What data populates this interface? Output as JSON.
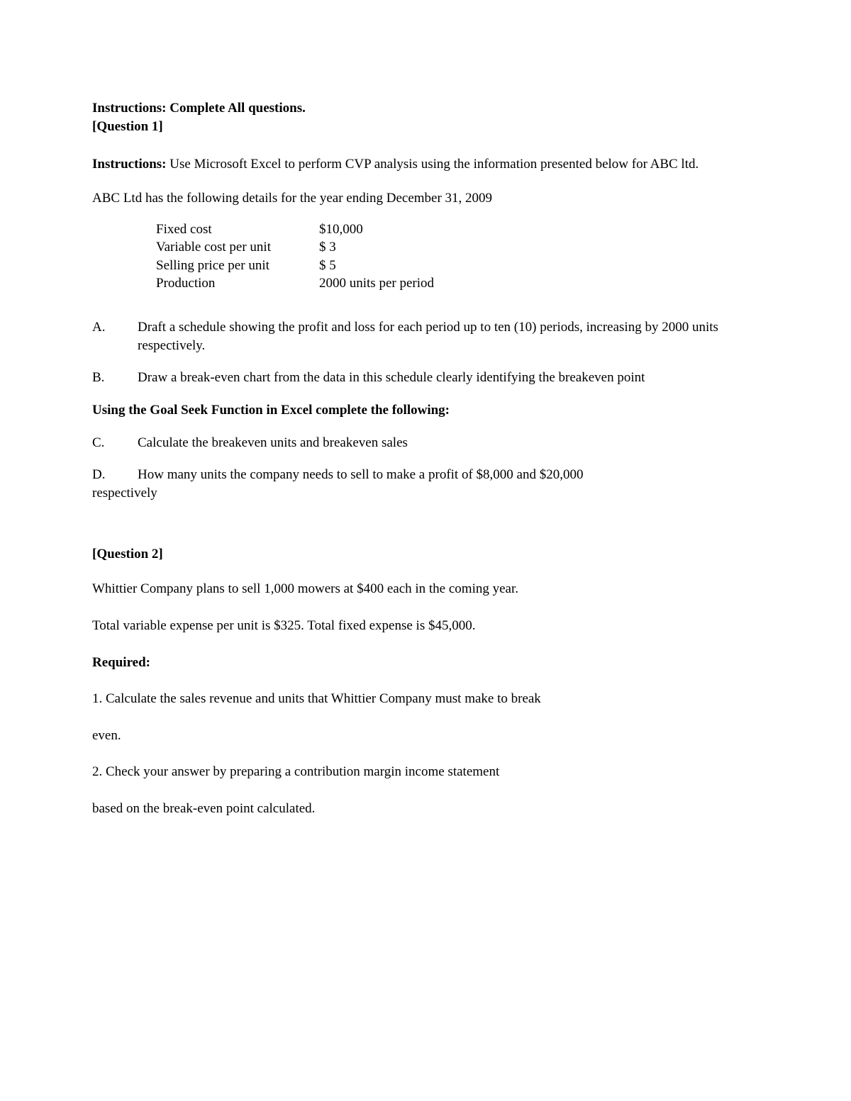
{
  "header": {
    "line1": "Instructions: Complete All questions.",
    "line2": "[Question 1]"
  },
  "q1": {
    "instructions_label": "Instructions:",
    "instructions_text": " Use Microsoft Excel to perform CVP analysis using the information presented below for ABC ltd.",
    "details_text": "ABC Ltd has the following details for the year ending December 31, 2009",
    "data": [
      {
        "label": "Fixed cost",
        "value": "$10,000"
      },
      {
        "label": "Variable cost per unit",
        "value": "$ 3"
      },
      {
        "label": "Selling price per unit",
        "value": "$ 5"
      },
      {
        "label": "Production",
        "value": "2000 units per period"
      }
    ],
    "items_ab": [
      {
        "letter": "A.",
        "text": "Draft a schedule showing the profit and loss for each period up to ten (10) periods, increasing by 2000 units respectively."
      },
      {
        "letter": "B.",
        "text": "Draw a break-even chart from the data in this schedule clearly identifying the breakeven point"
      }
    ],
    "subheading": "Using the Goal Seek Function in Excel complete the following:",
    "item_c": {
      "letter": "C.",
      "text": "Calculate the breakeven units and breakeven sales"
    },
    "item_d": {
      "letter": "D.",
      "text_line1": "How many units the company needs to sell to make a profit of $8,000 and $20,000",
      "text_line2": "respectively"
    }
  },
  "q2": {
    "heading": "[Question 2]",
    "para1": "Whittier Company plans to sell 1,000 mowers at $400 each in the coming year.",
    "para2": "Total variable expense per unit is $325. Total fixed expense is $45,000.",
    "required_label": "Required:",
    "item1_line1": "1. Calculate the sales revenue and units that Whittier Company must make to break",
    "item1_line2": "even.",
    "item2_line1": "2. Check your answer by preparing a contribution margin income statement",
    "item2_line2": "based on the break-even point calculated."
  }
}
